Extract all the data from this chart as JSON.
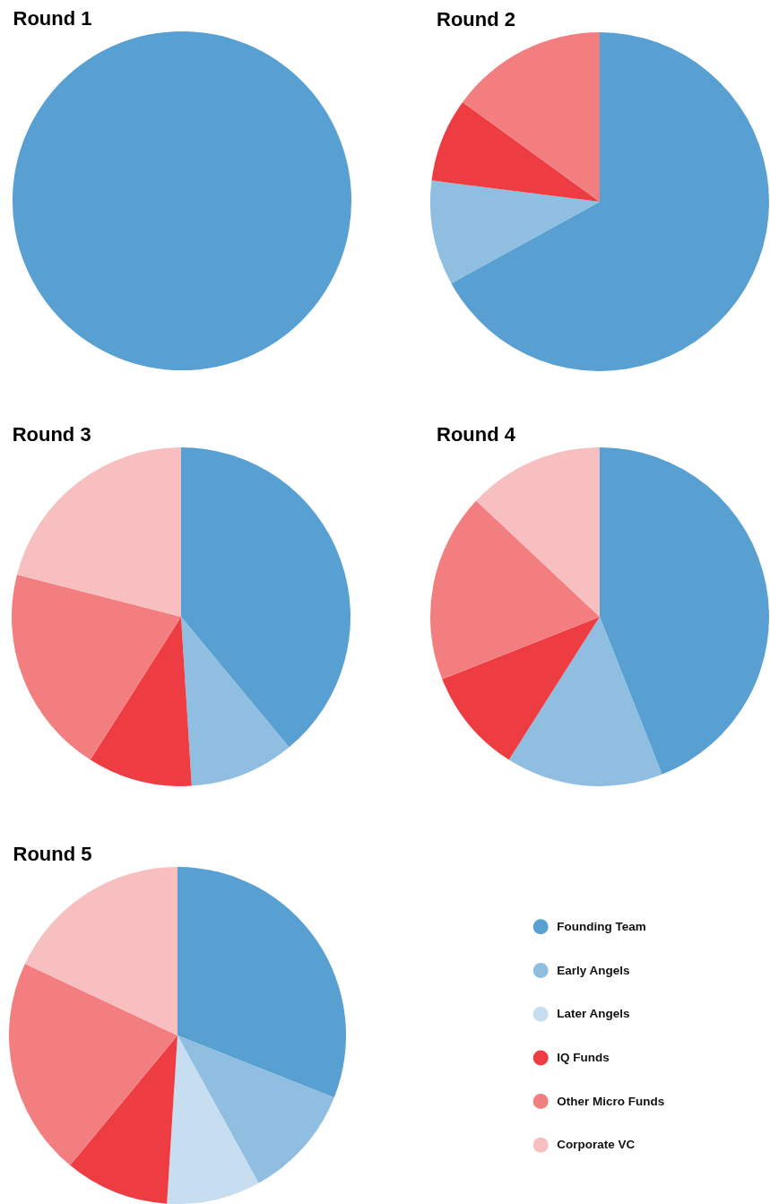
{
  "chart_data": [
    {
      "type": "pie",
      "title": "Round 1",
      "categories": [
        null
      ],
      "values": [
        100
      ],
      "colors": [
        "#589fd2"
      ]
    },
    {
      "type": "pie",
      "title": "Round 2",
      "categories": [
        null,
        null,
        null,
        null
      ],
      "values": [
        67,
        10,
        8,
        15
      ],
      "colors": [
        "#589fd2",
        "#8fbee0",
        "#ee3d42",
        "#f37e80"
      ]
    },
    {
      "type": "pie",
      "title": "Round 3",
      "categories": [
        null,
        null,
        null,
        null,
        null
      ],
      "values": [
        39,
        10,
        10,
        20,
        21
      ],
      "colors": [
        "#589fd2",
        "#8fbee0",
        "#ee3d42",
        "#f37e80",
        "#f8bfc1"
      ]
    },
    {
      "type": "pie",
      "title": "Round 4",
      "categories": [
        null,
        null,
        null,
        null,
        null
      ],
      "values": [
        44,
        15,
        10,
        18,
        13
      ],
      "colors": [
        "#589fd2",
        "#8fbee0",
        "#ee3d42",
        "#f37e80",
        "#f8bfc1"
      ]
    },
    {
      "type": "pie",
      "title": "Round 5",
      "categories": [
        "Founding Team",
        "Early Angels",
        "Later Angels",
        "IQ Funds",
        "Other Micro Funds",
        "Corporate VC"
      ],
      "values": [
        31,
        11,
        9,
        10,
        21,
        18
      ],
      "colors": [
        "#589fd2",
        "#8fbee0",
        "#c7ddf0",
        "#ee3d42",
        "#f37e80",
        "#f8bfc1"
      ],
      "legend": "right"
    }
  ]
}
